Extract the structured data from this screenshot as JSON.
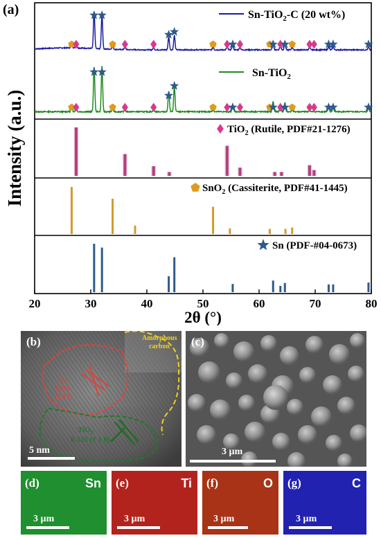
{
  "panel_labels": {
    "a": "(a)",
    "b": "(b)",
    "c": "(c)",
    "d": "(d)",
    "e": "(e)",
    "f": "(f)",
    "g": "(g)"
  },
  "chart_data": {
    "type": "line",
    "xlabel": "2θ (°)",
    "ylabel": "Intensity (a.u.)",
    "xlim": [
      20,
      80
    ],
    "xticks": [
      "20",
      "30",
      "40",
      "50",
      "60",
      "70",
      "80"
    ],
    "series": [
      {
        "name": "Sn-TiO2-C (20 wt%)",
        "name_main": "Sn-TiO",
        "name_sub": "2",
        "name_tail": "-C (20 wt%)",
        "color": "#1a1aa0",
        "peaks": [
          [
            26.6,
            0.12
          ],
          [
            27.4,
            0.14
          ],
          [
            30.6,
            0.92
          ],
          [
            32.0,
            0.85
          ],
          [
            33.9,
            0.1
          ],
          [
            36.1,
            0.08
          ],
          [
            41.2,
            0.06
          ],
          [
            43.9,
            0.32
          ],
          [
            44.9,
            0.36
          ],
          [
            51.8,
            0.07
          ],
          [
            54.3,
            0.07
          ],
          [
            55.3,
            0.12
          ],
          [
            56.6,
            0.06
          ],
          [
            62.5,
            0.15
          ],
          [
            63.8,
            0.13
          ],
          [
            64.6,
            0.15
          ],
          [
            65.9,
            0.06
          ],
          [
            69.0,
            0.06
          ],
          [
            72.4,
            0.08
          ],
          [
            73.2,
            0.08
          ],
          [
            79.5,
            0.06
          ]
        ]
      },
      {
        "name": "Sn-TiO2",
        "name_main": "Sn-TiO",
        "name_sub": "2",
        "name_tail": "",
        "color": "#1f8a1f",
        "peaks": [
          [
            26.6,
            0.1
          ],
          [
            27.4,
            0.12
          ],
          [
            30.6,
            1.0
          ],
          [
            32.0,
            1.0
          ],
          [
            33.9,
            0.06
          ],
          [
            36.1,
            0.05
          ],
          [
            41.2,
            0.04
          ],
          [
            43.9,
            0.45
          ],
          [
            44.9,
            0.55
          ],
          [
            51.8,
            0.04
          ],
          [
            55.3,
            0.15
          ],
          [
            62.5,
            0.22
          ],
          [
            63.8,
            0.18
          ],
          [
            64.6,
            0.2
          ],
          [
            65.9,
            0.04
          ],
          [
            69.0,
            0.04
          ],
          [
            72.4,
            0.1
          ],
          [
            73.2,
            0.1
          ],
          [
            79.5,
            0.08
          ]
        ]
      }
    ],
    "references": [
      {
        "label_main": "TiO",
        "label_sub": "2",
        "label_tail": " (Rutile, PDF#21-1276)",
        "marker": "diamond",
        "marker_color": "#d63a8c",
        "bar_color": "#b0407e",
        "lines": [
          [
            27.4,
            1.0
          ],
          [
            36.1,
            0.45
          ],
          [
            41.2,
            0.2
          ],
          [
            44.0,
            0.08
          ],
          [
            54.3,
            0.62
          ],
          [
            56.6,
            0.17
          ],
          [
            62.8,
            0.08
          ],
          [
            64.0,
            0.08
          ],
          [
            69.0,
            0.22
          ],
          [
            69.8,
            0.12
          ]
        ]
      },
      {
        "label_main": "SnO",
        "label_sub": "2",
        "label_tail": " (Cassiterite, PDF#41-1445)",
        "marker": "pentagon",
        "marker_color": "#e09a1c",
        "bar_color": "#d39a2c",
        "lines": [
          [
            26.6,
            1.0
          ],
          [
            33.9,
            0.75
          ],
          [
            37.9,
            0.18
          ],
          [
            51.8,
            0.58
          ],
          [
            54.8,
            0.12
          ],
          [
            61.9,
            0.11
          ],
          [
            64.7,
            0.11
          ],
          [
            65.9,
            0.14
          ]
        ]
      },
      {
        "label_main": "Sn (PDF-#04-0673)",
        "label_sub": "",
        "label_tail": "",
        "marker": "star",
        "marker_color": "#2e5a8c",
        "bar_color": "#2e5a8c",
        "lines": [
          [
            30.6,
            1.0
          ],
          [
            32.0,
            0.92
          ],
          [
            43.9,
            0.33
          ],
          [
            44.9,
            0.72
          ],
          [
            55.3,
            0.17
          ],
          [
            62.5,
            0.24
          ],
          [
            63.8,
            0.13
          ],
          [
            64.6,
            0.19
          ],
          [
            72.4,
            0.16
          ],
          [
            73.2,
            0.16
          ],
          [
            79.5,
            0.2
          ]
        ]
      }
    ],
    "markers": {
      "Sn-TiO2-C (20 wt%)": {
        "star": [
          30.6,
          32.0,
          43.9,
          44.9,
          55.3,
          62.5,
          64.6,
          72.4,
          73.2,
          79.5
        ],
        "diamond": [
          27.4,
          36.1,
          41.2,
          54.3,
          56.6,
          63.8,
          69.0,
          69.8
        ],
        "pentagon": [
          26.6,
          33.9,
          51.8,
          61.9,
          65.9
        ]
      },
      "Sn-TiO2": {
        "star": [
          30.6,
          32.0,
          43.9,
          44.9,
          55.3,
          62.5,
          64.6,
          72.4,
          73.2,
          79.5
        ],
        "diamond": [
          27.4,
          36.1,
          41.2,
          54.3,
          56.6,
          63.8,
          69.0,
          69.8
        ],
        "pentagon": [
          26.6,
          33.9,
          51.8,
          61.9,
          65.9
        ]
      }
    }
  },
  "tem": {
    "annotation_carbon_1": "Amorphous",
    "annotation_carbon_2": "carbon",
    "annotation_sn_1": "Sn",
    "annotation_sn_2": "0.292",
    "annotation_sn_3": "(2 0 0)",
    "annotation_tio2": "TiO",
    "annotation_tio2_sub": "2",
    "annotation_tio2_d": "0.325 (1 1 0)",
    "scale": "5 nm"
  },
  "sem": {
    "scale": "3 µm"
  },
  "eds": [
    {
      "element": "Sn",
      "scale": "3 µm",
      "color": "#1f8f2f"
    },
    {
      "element": "Ti",
      "scale": "3 µm",
      "color": "#b3231d"
    },
    {
      "element": "O",
      "scale": "3 µm",
      "color": "#a83316"
    },
    {
      "element": "C",
      "scale": "3 µm",
      "color": "#2222b0"
    }
  ]
}
